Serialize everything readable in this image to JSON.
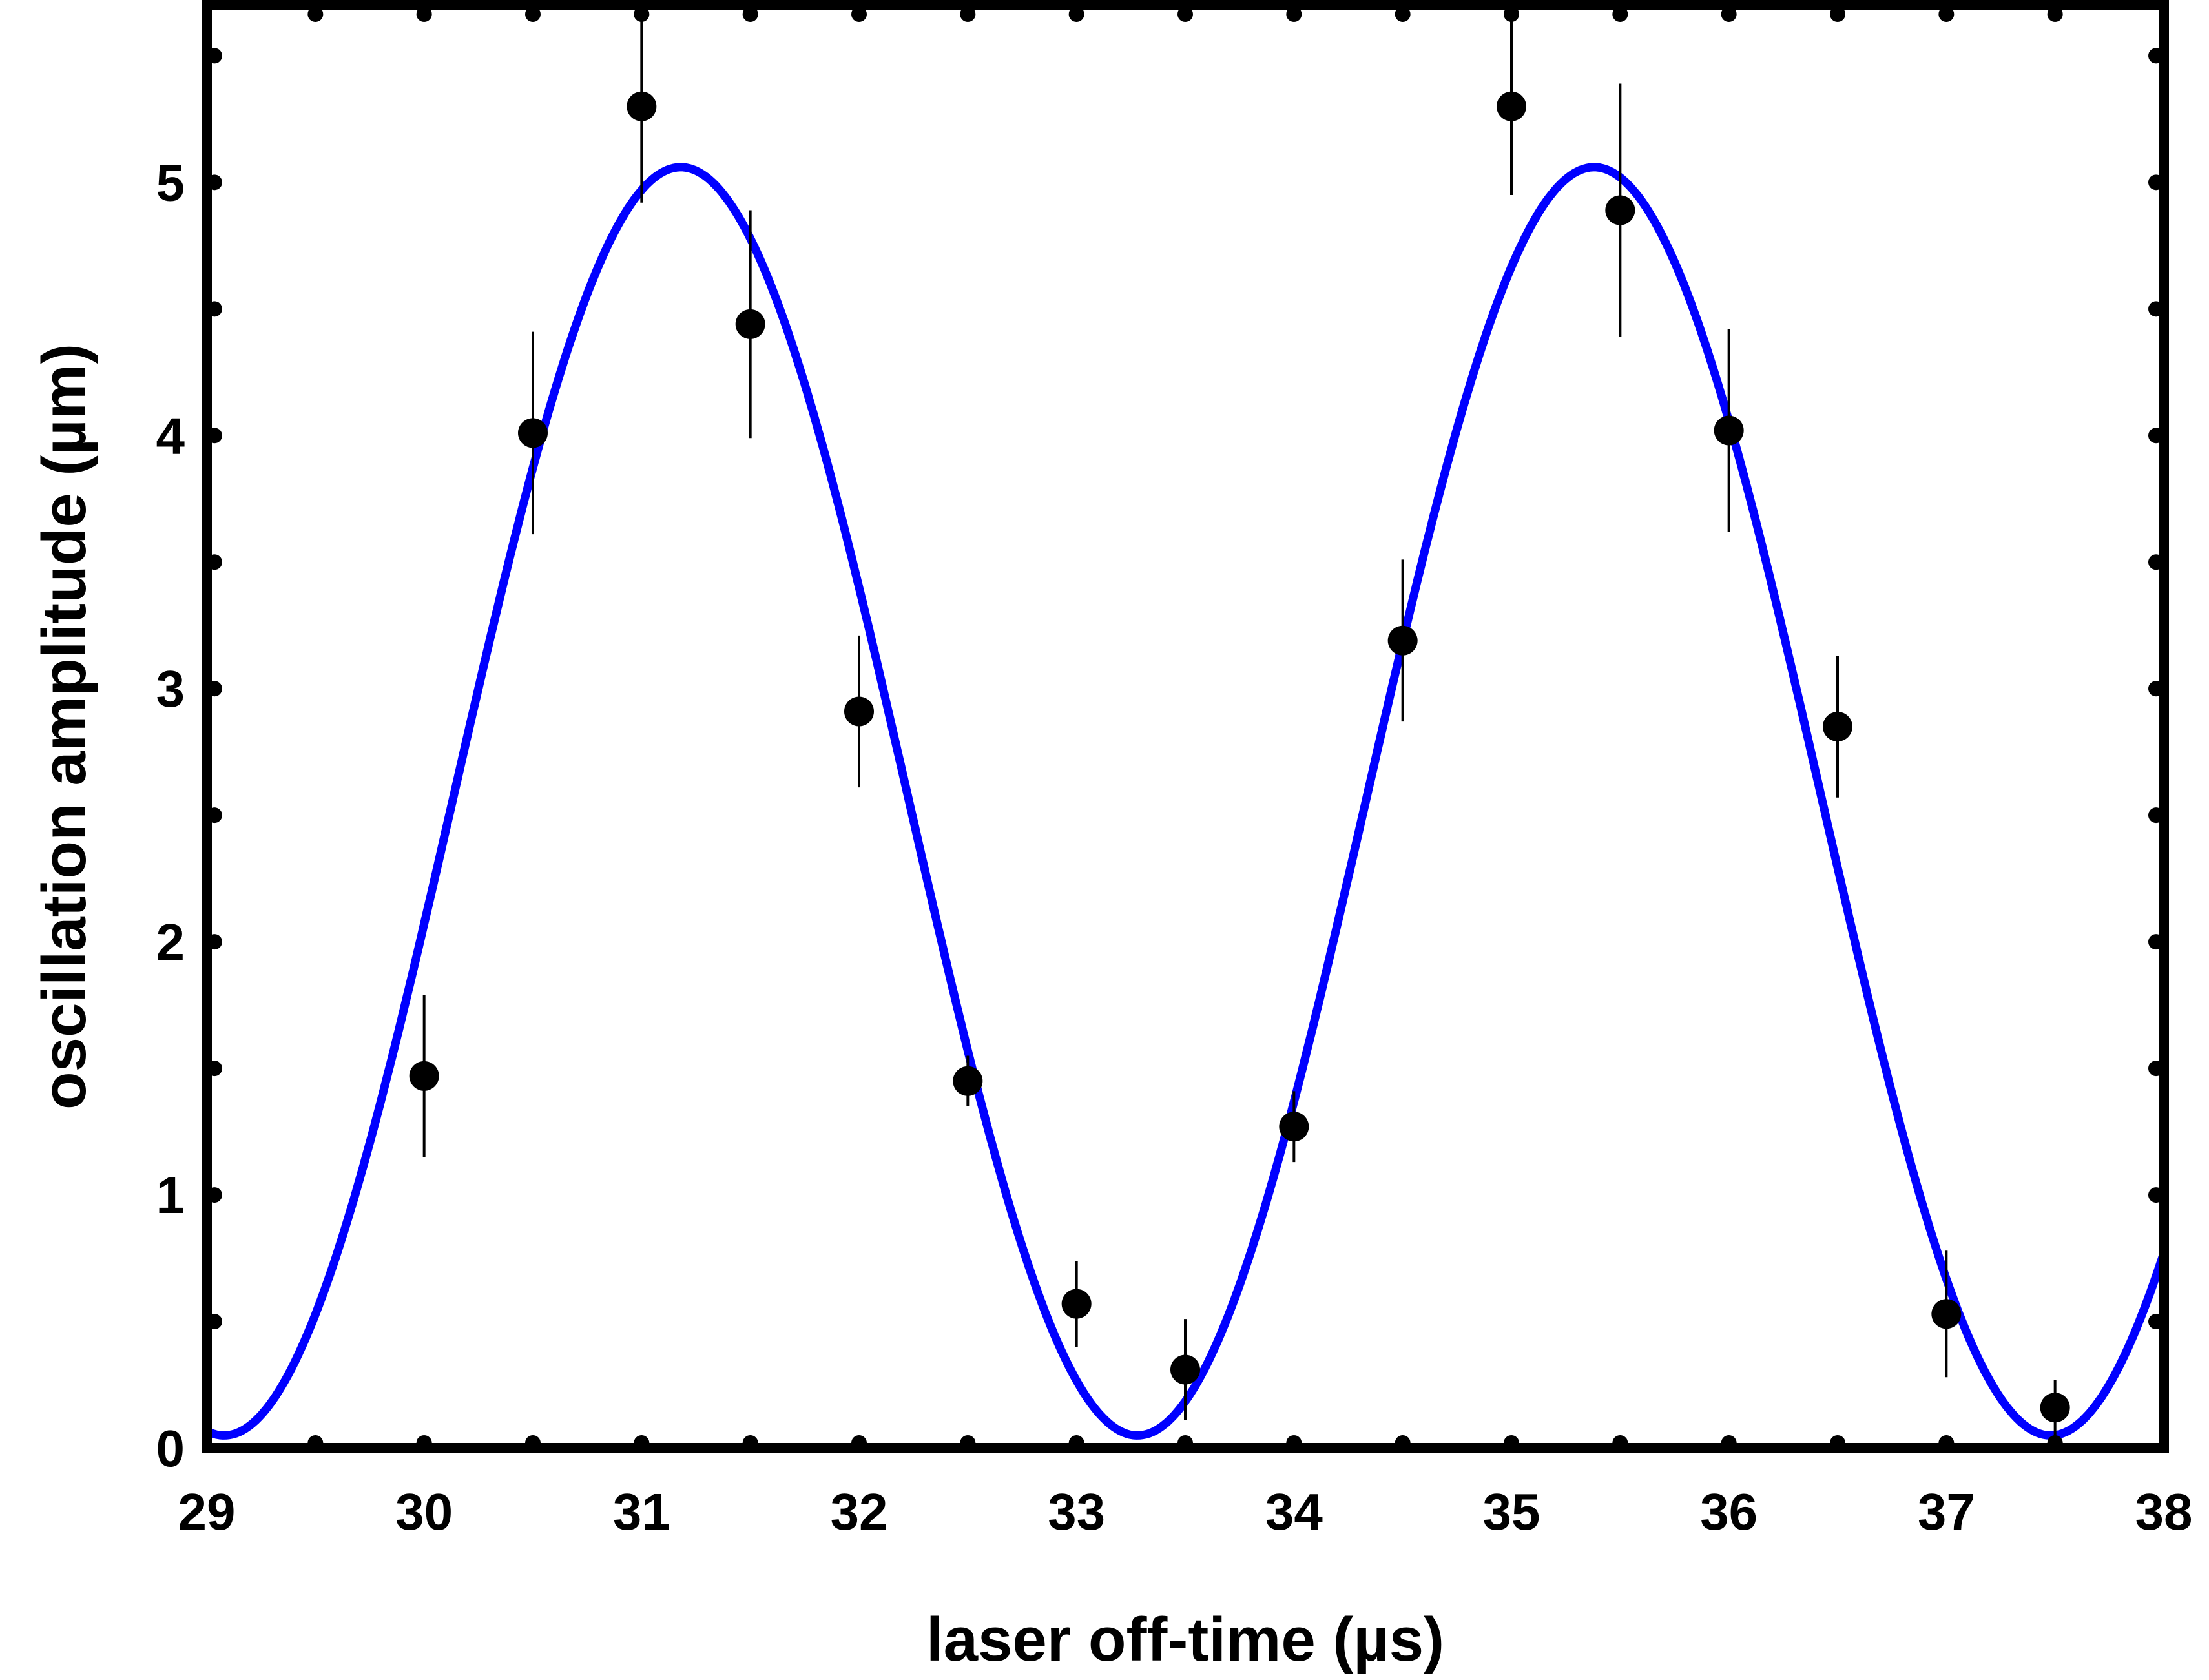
{
  "chart_data": {
    "type": "scatter",
    "title": "",
    "xlabel": "laser off-time (µs)",
    "ylabel": "oscillation amplitude (µm)",
    "xlim": [
      29,
      38
    ],
    "ylim": [
      0,
      5.7
    ],
    "xticks": [
      29,
      30,
      31,
      32,
      33,
      34,
      35,
      36,
      37,
      38
    ],
    "xtick_labels": [
      "29",
      "30",
      "31",
      "32",
      "33",
      "34",
      "35",
      "36",
      "37",
      "38"
    ],
    "yticks": [
      0,
      1,
      2,
      3,
      4,
      5
    ],
    "ytick_labels": [
      "0",
      "1",
      "2",
      "3",
      "4",
      "5"
    ],
    "grid": false,
    "legend": "none",
    "points": {
      "x": [
        30.0,
        30.5,
        31.0,
        31.5,
        32.0,
        32.5,
        33.0,
        33.5,
        34.0,
        34.5,
        35.0,
        35.5,
        36.0,
        36.5,
        37.0,
        37.5
      ],
      "y": [
        1.47,
        4.01,
        5.3,
        4.44,
        2.91,
        1.45,
        0.57,
        0.31,
        1.27,
        3.19,
        5.3,
        4.89,
        4.02,
        2.85,
        0.53,
        0.16
      ],
      "err": [
        0.32,
        0.4,
        0.38,
        0.45,
        0.3,
        0.1,
        0.17,
        0.2,
        0.14,
        0.32,
        0.35,
        0.5,
        0.4,
        0.28,
        0.25,
        0.11
      ],
      "color": "#000000"
    },
    "fit": {
      "type": "sinusoid",
      "offset": 2.555,
      "amplitude": 2.505,
      "period": 4.2,
      "peak_x": 31.18,
      "color": "#0000ff"
    }
  }
}
